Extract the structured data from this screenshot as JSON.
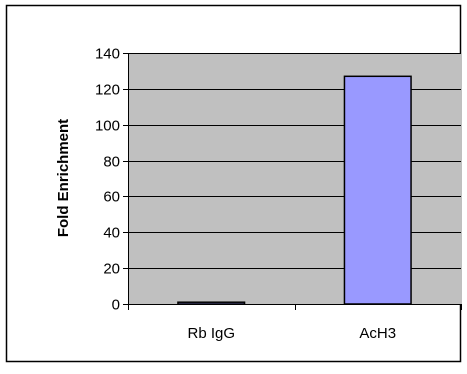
{
  "chart_data": {
    "type": "bar",
    "title": "",
    "xlabel": "",
    "ylabel": "Fold Enrichment",
    "categories": [
      "Rb IgG",
      "AcH3"
    ],
    "values": [
      1,
      127
    ],
    "ylim": [
      0,
      140
    ],
    "yticks": [
      0,
      20,
      40,
      60,
      80,
      100,
      120,
      140
    ],
    "grid": true,
    "legend": "none",
    "colors": {
      "plot_area": "#c0c0c0",
      "bar_fill": "#9999ff",
      "bar_stroke": "#000000",
      "gridline": "#000000",
      "frame": "#000000"
    }
  }
}
